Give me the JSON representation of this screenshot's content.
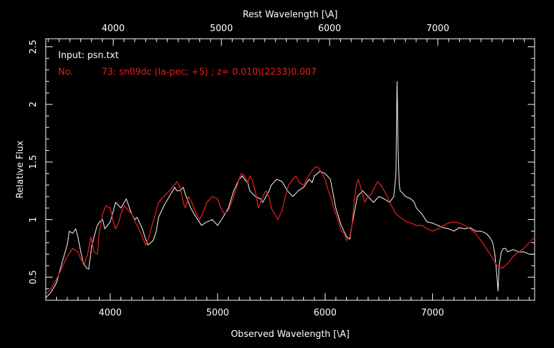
{
  "colors": {
    "background": "#000000",
    "axes": "#ffffff",
    "observed": "#ffffff",
    "template": "#e02020"
  },
  "chart_data": {
    "type": "line",
    "xlabel": "Observed Wavelength [\\A]",
    "x2label": "Rest Wavelength [\\A]",
    "ylabel": "Relative Flux",
    "xlim": [
      3400,
      7950
    ],
    "ylim": [
      0.3,
      2.57
    ],
    "x_ticks": [
      4000,
      5000,
      6000,
      7000
    ],
    "x2_ticks": [
      4000,
      5000,
      6000,
      7000
    ],
    "y_ticks": [
      "0.5",
      "1",
      "1.5",
      "2",
      "2.5"
    ],
    "y_tick_values": [
      0.5,
      1.0,
      1.5,
      2.0,
      2.5
    ],
    "redshift": 0.007,
    "annotations": {
      "input_line": "Input: psn.txt",
      "match_line": "No.          73: sn09dc (Ia-pec; +5) ; z= 0.010\\(2233)0.007"
    },
    "series": [
      {
        "color": "#ffffff",
        "x": [
          3400,
          3450,
          3500,
          3550,
          3600,
          3620,
          3650,
          3680,
          3700,
          3720,
          3750,
          3780,
          3800,
          3830,
          3850,
          3880,
          3900,
          3930,
          3950,
          4000,
          4030,
          4050,
          4100,
          4150,
          4200,
          4230,
          4250,
          4300,
          4330,
          4350,
          4380,
          4400,
          4430,
          4450,
          4500,
          4550,
          4600,
          4620,
          4650,
          4680,
          4700,
          4750,
          4800,
          4830,
          4850,
          4900,
          4950,
          5000,
          5050,
          5100,
          5150,
          5200,
          5230,
          5250,
          5280,
          5300,
          5350,
          5400,
          5420,
          5450,
          5480,
          5500,
          5550,
          5600,
          5650,
          5700,
          5750,
          5800,
          5850,
          5880,
          5900,
          5930,
          5950,
          6000,
          6050,
          6080,
          6100,
          6150,
          6200,
          6230,
          6250,
          6280,
          6300,
          6350,
          6400,
          6450,
          6480,
          6500,
          6550,
          6600,
          6640,
          6660,
          6670,
          6680,
          6690,
          6700,
          6750,
          6800,
          6830,
          6850,
          6900,
          6950,
          7000,
          7050,
          7100,
          7150,
          7200,
          7250,
          7300,
          7350,
          7400,
          7450,
          7500,
          7530,
          7560,
          7580,
          7600,
          7610,
          7620,
          7640,
          7660,
          7680,
          7700,
          7750,
          7800,
          7850,
          7900,
          7950
        ],
        "values": [
          0.32,
          0.37,
          0.45,
          0.62,
          0.78,
          0.9,
          0.88,
          0.92,
          0.85,
          0.75,
          0.62,
          0.58,
          0.57,
          0.78,
          0.85,
          0.95,
          0.98,
          1.0,
          0.92,
          0.98,
          1.08,
          1.15,
          1.1,
          1.18,
          1.05,
          1.0,
          1.02,
          0.92,
          0.83,
          0.78,
          0.8,
          0.82,
          0.9,
          1.02,
          1.12,
          1.2,
          1.28,
          1.25,
          1.25,
          1.28,
          1.22,
          1.1,
          1.02,
          0.98,
          0.95,
          0.98,
          1.0,
          0.95,
          1.02,
          1.1,
          1.25,
          1.35,
          1.38,
          1.35,
          1.32,
          1.25,
          1.2,
          1.18,
          1.15,
          1.2,
          1.25,
          1.3,
          1.35,
          1.33,
          1.25,
          1.2,
          1.25,
          1.28,
          1.35,
          1.32,
          1.38,
          1.4,
          1.42,
          1.4,
          1.35,
          1.2,
          1.1,
          0.95,
          0.85,
          0.83,
          0.95,
          1.1,
          1.2,
          1.25,
          1.2,
          1.15,
          1.18,
          1.2,
          1.18,
          1.15,
          1.2,
          1.4,
          2.2,
          1.6,
          1.3,
          1.25,
          1.2,
          1.18,
          1.15,
          1.1,
          1.05,
          0.98,
          0.97,
          0.95,
          0.93,
          0.92,
          0.9,
          0.93,
          0.92,
          0.93,
          0.9,
          0.9,
          0.88,
          0.85,
          0.8,
          0.7,
          0.5,
          0.38,
          0.6,
          0.72,
          0.75,
          0.75,
          0.72,
          0.74,
          0.72,
          0.72,
          0.7,
          0.7
        ]
      },
      {
        "color": "#e02020",
        "x": [
          3400,
          3450,
          3500,
          3550,
          3600,
          3650,
          3700,
          3730,
          3760,
          3790,
          3820,
          3850,
          3880,
          3900,
          3930,
          3960,
          4000,
          4030,
          4050,
          4080,
          4100,
          4130,
          4150,
          4200,
          4250,
          4300,
          4330,
          4360,
          4390,
          4420,
          4450,
          4500,
          4550,
          4600,
          4620,
          4640,
          4660,
          4680,
          4700,
          4730,
          4760,
          4800,
          4830,
          4860,
          4900,
          4950,
          5000,
          5030,
          5060,
          5100,
          5150,
          5200,
          5220,
          5250,
          5280,
          5300,
          5320,
          5350,
          5380,
          5400,
          5430,
          5450,
          5480,
          5500,
          5530,
          5560,
          5600,
          5630,
          5660,
          5700,
          5730,
          5760,
          5800,
          5830,
          5860,
          5900,
          5930,
          5960,
          6000,
          6030,
          6060,
          6080,
          6100,
          6120,
          6150,
          6180,
          6200,
          6230,
          6250,
          6270,
          6290,
          6310,
          6340,
          6370,
          6400,
          6430,
          6460,
          6490,
          6520,
          6550,
          6580,
          6600,
          6630,
          6660,
          6700,
          6730,
          6760,
          6800,
          6850,
          6900,
          6950,
          7000,
          7050,
          7100,
          7150,
          7200,
          7250,
          7300,
          7350,
          7400,
          7450,
          7500,
          7550,
          7600,
          7650,
          7700,
          7750,
          7800,
          7850,
          7900,
          7950
        ],
        "values": [
          0.35,
          0.4,
          0.48,
          0.58,
          0.68,
          0.75,
          0.72,
          0.65,
          0.62,
          0.7,
          0.85,
          0.72,
          0.7,
          0.9,
          1.05,
          1.12,
          1.1,
          0.98,
          0.92,
          0.98,
          1.05,
          1.12,
          1.1,
          1.05,
          0.95,
          0.85,
          0.78,
          0.85,
          0.95,
          1.05,
          1.15,
          1.2,
          1.25,
          1.3,
          1.33,
          1.3,
          1.25,
          1.15,
          1.1,
          1.2,
          1.15,
          1.05,
          1.0,
          1.05,
          1.15,
          1.2,
          1.18,
          1.1,
          1.05,
          1.08,
          1.2,
          1.35,
          1.4,
          1.38,
          1.32,
          1.38,
          1.35,
          1.25,
          1.1,
          1.15,
          1.22,
          1.25,
          1.2,
          1.1,
          1.05,
          1.0,
          1.08,
          1.2,
          1.3,
          1.35,
          1.38,
          1.32,
          1.3,
          1.35,
          1.4,
          1.45,
          1.46,
          1.42,
          1.35,
          1.25,
          1.18,
          1.1,
          1.05,
          1.0,
          0.9,
          0.88,
          0.82,
          0.85,
          0.95,
          1.15,
          1.3,
          1.35,
          1.25,
          1.15,
          1.2,
          1.22,
          1.28,
          1.33,
          1.3,
          1.25,
          1.2,
          1.15,
          1.1,
          1.05,
          1.02,
          1.0,
          0.98,
          0.97,
          0.95,
          0.95,
          0.92,
          0.9,
          0.92,
          0.95,
          0.97,
          0.98,
          0.97,
          0.95,
          0.92,
          0.88,
          0.82,
          0.75,
          0.68,
          0.6,
          0.58,
          0.62,
          0.68,
          0.72,
          0.75,
          0.8,
          0.85
        ]
      }
    ]
  }
}
